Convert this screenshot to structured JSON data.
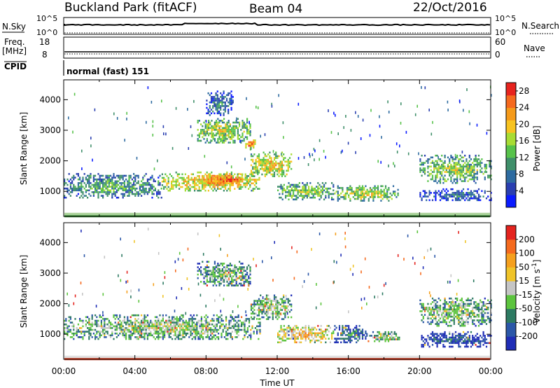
{
  "header": {
    "station": "Buckland Park (fitACF)",
    "beam": "Beam 04",
    "date": "22/Oct/2016"
  },
  "strips": {
    "nsky_label": "N.Sky",
    "nsearch_label": "N.Search",
    "nsky_ticks": [
      "10^5",
      "10^0"
    ],
    "nsearch_ticks": [
      "10^5",
      "10^0"
    ],
    "freq_label_1": "Freq.",
    "freq_label_2": "[MHz]",
    "freq_ticks": [
      "18",
      "8"
    ],
    "nave_label": "Nave",
    "nave_ticks": [
      "60",
      "0"
    ],
    "cpid_label": "CPID",
    "cpid_text": "normal (fast) 151"
  },
  "colors": {
    "power": [
      "#0a1bff",
      "#2a3fb0",
      "#2e6ba0",
      "#3f8f6a",
      "#57c24a",
      "#a8dc34",
      "#f7c320",
      "#f59a1a",
      "#f5691e",
      "#e7231e"
    ],
    "velocity": [
      "#1f2db6",
      "#2b57a8",
      "#2d7a62",
      "#5cc43e",
      "#c5c5c5",
      "#f0c429",
      "#f5a01e",
      "#f56a1e",
      "#e4231e"
    ],
    "ground": "#6ab04c"
  },
  "chart_data": [
    {
      "type": "heatmap",
      "name": "power-panel",
      "ylabel": "Slant Range [km]",
      "xlabel": "Time UT",
      "yticks": [
        1000,
        2000,
        3000,
        4000
      ],
      "ylim": [
        180,
        4650
      ],
      "xticks": [
        "00:00",
        "04:00",
        "08:00",
        "12:00",
        "16:00",
        "20:00",
        "00:00"
      ],
      "xlim_hours": [
        0,
        24
      ],
      "colorbar": {
        "label": "Power [dB]",
        "ticks": [
          "4",
          "8",
          "12",
          "16",
          "20",
          "24",
          "28"
        ],
        "range": [
          0,
          30
        ]
      },
      "regions": [
        {
          "t": [
            0,
            5.5
          ],
          "r": [
            800,
            1600
          ],
          "level": 0.45
        },
        {
          "t": [
            5.5,
            11
          ],
          "r": [
            1050,
            1650
          ],
          "level": 0.72
        },
        {
          "t": [
            8,
            10.2
          ],
          "r": [
            1200,
            1600
          ],
          "level": 0.88
        },
        {
          "t": [
            10.5,
            12.8
          ],
          "r": [
            1500,
            2300
          ],
          "level": 0.7
        },
        {
          "t": [
            7.5,
            10.5
          ],
          "r": [
            2600,
            3400
          ],
          "level": 0.6
        },
        {
          "t": [
            8,
            9.5
          ],
          "r": [
            3500,
            4300
          ],
          "level": 0.35
        },
        {
          "t": [
            10.2,
            10.8
          ],
          "r": [
            2400,
            2700
          ],
          "level": 0.85
        },
        {
          "t": [
            12,
            15.2
          ],
          "r": [
            750,
            1300
          ],
          "level": 0.55
        },
        {
          "t": [
            15.2,
            18.8
          ],
          "r": [
            700,
            1200
          ],
          "level": 0.6
        },
        {
          "t": [
            20,
            24
          ],
          "r": [
            1300,
            2200
          ],
          "level": 0.55
        },
        {
          "t": [
            20,
            24
          ],
          "r": [
            700,
            1100
          ],
          "level": 0.3
        }
      ]
    },
    {
      "type": "heatmap",
      "name": "velocity-panel",
      "ylabel": "Slant Range [km]",
      "xlabel": "Time UT",
      "yticks": [
        1000,
        2000,
        3000,
        4000
      ],
      "ylim": [
        180,
        4650
      ],
      "xticks": [
        "00:00",
        "04:00",
        "08:00",
        "12:00",
        "16:00",
        "20:00",
        "00:00"
      ],
      "xlim_hours": [
        0,
        24
      ],
      "colorbar": {
        "label": "Velocity [m s^-1]",
        "ticks": [
          "200",
          "100",
          "50",
          "15",
          "-15",
          "-50",
          "-100",
          "-200"
        ],
        "range": [
          -250,
          250
        ]
      },
      "regions": [
        {
          "t": [
            0,
            11
          ],
          "r": [
            850,
            1650
          ],
          "level": 0.5
        },
        {
          "t": [
            10.5,
            12.8
          ],
          "r": [
            1500,
            2300
          ],
          "level": 0.5
        },
        {
          "t": [
            7.5,
            10.5
          ],
          "r": [
            2600,
            3400
          ],
          "level": 0.45
        },
        {
          "t": [
            12,
            15.2
          ],
          "r": [
            750,
            1300
          ],
          "level": 0.7
        },
        {
          "t": [
            15.2,
            17
          ],
          "r": [
            750,
            1300
          ],
          "level": 0.3
        },
        {
          "t": [
            17,
            19
          ],
          "r": [
            750,
            1100
          ],
          "level": 0.5
        },
        {
          "t": [
            20,
            24
          ],
          "r": [
            1300,
            2200
          ],
          "level": 0.5
        },
        {
          "t": [
            20,
            24
          ],
          "r": [
            600,
            1100
          ],
          "level": 0.2
        }
      ]
    }
  ],
  "xlabel": "Time UT"
}
